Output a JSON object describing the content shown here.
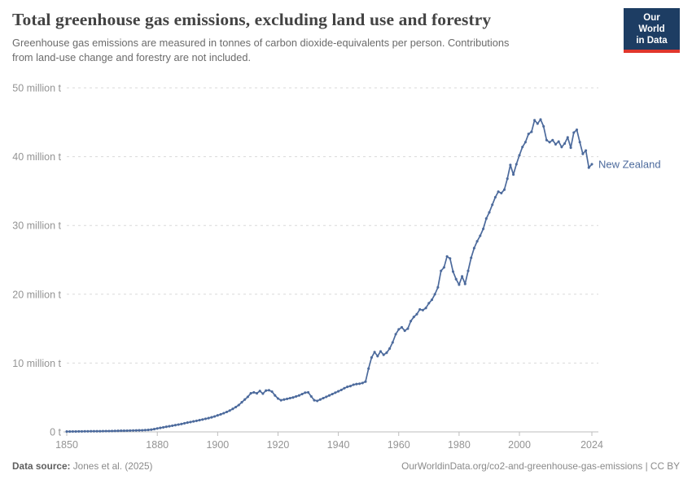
{
  "header": {
    "title": "Total greenhouse gas emissions, excluding land use and forestry",
    "subtitle_line1": "Greenhouse gas emissions are measured in tonnes of carbon dioxide-equivalents per person. Contributions",
    "subtitle_line2": "from land-use change and forestry are not included."
  },
  "logo": {
    "line1": "Our World",
    "line2": "in Data",
    "bg_color": "#1d3d63",
    "accent_color": "#e0362c"
  },
  "footer": {
    "source_label": "Data source:",
    "source_value": "Jones et al. (2025)",
    "credit": "OurWorldinData.org/co2-and-greenhouse-gas-emissions | CC BY"
  },
  "chart_data": {
    "type": "line",
    "title": "Total greenhouse gas emissions, excluding land use and forestry",
    "xlabel": "",
    "ylabel": "",
    "xlim": [
      1850,
      2024
    ],
    "ylim": [
      0,
      50
    ],
    "grid": "horizontal-dashed",
    "legend": "inline-end-label",
    "xticks": [
      1850,
      1880,
      1900,
      1920,
      1940,
      1960,
      1980,
      2000,
      2024
    ],
    "yticks": [
      {
        "value": 0,
        "label": "0 t"
      },
      {
        "value": 10,
        "label": "10 million t"
      },
      {
        "value": 20,
        "label": "20 million t"
      },
      {
        "value": 30,
        "label": "30 million t"
      },
      {
        "value": 40,
        "label": "40 million t"
      },
      {
        "value": 50,
        "label": "50 million t"
      }
    ],
    "x": [
      1850,
      1851,
      1852,
      1853,
      1854,
      1855,
      1856,
      1857,
      1858,
      1859,
      1860,
      1861,
      1862,
      1863,
      1864,
      1865,
      1866,
      1867,
      1868,
      1869,
      1870,
      1871,
      1872,
      1873,
      1874,
      1875,
      1876,
      1877,
      1878,
      1879,
      1880,
      1881,
      1882,
      1883,
      1884,
      1885,
      1886,
      1887,
      1888,
      1889,
      1890,
      1891,
      1892,
      1893,
      1894,
      1895,
      1896,
      1897,
      1898,
      1899,
      1900,
      1901,
      1902,
      1903,
      1904,
      1905,
      1906,
      1907,
      1908,
      1909,
      1910,
      1911,
      1912,
      1913,
      1914,
      1915,
      1916,
      1917,
      1918,
      1919,
      1920,
      1921,
      1922,
      1923,
      1924,
      1925,
      1926,
      1927,
      1928,
      1929,
      1930,
      1931,
      1932,
      1933,
      1934,
      1935,
      1936,
      1937,
      1938,
      1939,
      1940,
      1941,
      1942,
      1943,
      1944,
      1945,
      1946,
      1947,
      1948,
      1949,
      1950,
      1951,
      1952,
      1953,
      1954,
      1955,
      1956,
      1957,
      1958,
      1959,
      1960,
      1961,
      1962,
      1963,
      1964,
      1965,
      1966,
      1967,
      1968,
      1969,
      1970,
      1971,
      1972,
      1973,
      1974,
      1975,
      1976,
      1977,
      1978,
      1979,
      1980,
      1981,
      1982,
      1983,
      1984,
      1985,
      1986,
      1987,
      1988,
      1989,
      1990,
      1991,
      1992,
      1993,
      1994,
      1995,
      1996,
      1997,
      1998,
      1999,
      2000,
      2001,
      2002,
      2003,
      2004,
      2005,
      2006,
      2007,
      2008,
      2009,
      2010,
      2011,
      2012,
      2013,
      2014,
      2015,
      2016,
      2017,
      2018,
      2019,
      2020,
      2021,
      2022,
      2023,
      2024
    ],
    "series": [
      {
        "name": "New Zealand",
        "color": "#4c6a9c",
        "values": [
          0.05,
          0.05,
          0.06,
          0.06,
          0.07,
          0.07,
          0.08,
          0.08,
          0.09,
          0.09,
          0.1,
          0.1,
          0.11,
          0.12,
          0.12,
          0.13,
          0.14,
          0.15,
          0.16,
          0.17,
          0.18,
          0.19,
          0.2,
          0.21,
          0.22,
          0.24,
          0.26,
          0.28,
          0.33,
          0.4,
          0.5,
          0.58,
          0.66,
          0.74,
          0.82,
          0.9,
          0.98,
          1.06,
          1.15,
          1.25,
          1.35,
          1.43,
          1.52,
          1.61,
          1.7,
          1.8,
          1.9,
          2.0,
          2.12,
          2.25,
          2.4,
          2.55,
          2.72,
          2.9,
          3.1,
          3.35,
          3.6,
          3.9,
          4.3,
          4.7,
          5.1,
          5.6,
          5.75,
          5.6,
          5.95,
          5.55,
          6.0,
          6.05,
          5.85,
          5.3,
          4.85,
          4.6,
          4.7,
          4.8,
          4.9,
          5.0,
          5.15,
          5.3,
          5.5,
          5.7,
          5.75,
          5.15,
          4.6,
          4.5,
          4.7,
          4.9,
          5.1,
          5.3,
          5.5,
          5.7,
          5.9,
          6.1,
          6.35,
          6.55,
          6.65,
          6.85,
          6.95,
          7.0,
          7.1,
          7.3,
          9.2,
          10.8,
          11.6,
          11.0,
          11.7,
          11.2,
          11.5,
          12.1,
          13.0,
          14.2,
          14.9,
          15.2,
          14.7,
          15.0,
          16.1,
          16.7,
          17.1,
          17.8,
          17.7,
          18.0,
          18.7,
          19.2,
          20.0,
          21.0,
          23.4,
          23.9,
          25.5,
          25.2,
          23.3,
          22.2,
          21.4,
          22.6,
          21.5,
          23.4,
          25.3,
          26.7,
          27.7,
          28.5,
          29.5,
          31.0,
          31.9,
          33.0,
          34.1,
          34.9,
          34.7,
          35.2,
          36.8,
          38.8,
          37.4,
          38.9,
          40.2,
          41.4,
          42.1,
          43.3,
          43.6,
          45.3,
          44.8,
          45.4,
          44.4,
          42.4,
          42.1,
          42.4,
          41.8,
          42.2,
          41.4,
          41.9,
          42.8,
          41.3,
          43.5,
          43.9,
          42.1,
          40.4,
          40.9,
          38.4,
          38.9
        ]
      }
    ]
  }
}
